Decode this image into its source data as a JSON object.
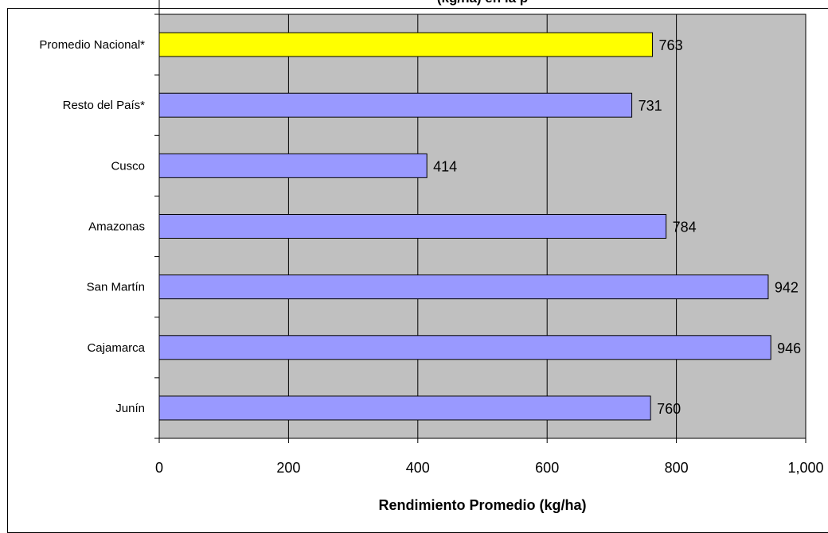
{
  "chart_data": {
    "type": "bar",
    "orientation": "horizontal",
    "title": "(kg/ha) en la p",
    "xlabel": "Rendimiento Promedio (kg/ha)",
    "ylabel": "",
    "categories": [
      "Promedio Nacional*",
      "Resto del País*",
      "Cusco",
      "Amazonas",
      "San Martín",
      "Cajamarca",
      "Junín"
    ],
    "values": [
      763,
      731,
      414,
      784,
      942,
      946,
      760
    ],
    "value_labels": [
      "763",
      "731",
      "414",
      "784",
      "942",
      "946",
      "760"
    ],
    "xlim": [
      0,
      1000
    ],
    "xticks": [
      0,
      200,
      400,
      600,
      800,
      1000
    ],
    "xtick_labels": [
      "0",
      "200",
      "400",
      "600",
      "800",
      "1,000"
    ],
    "grid": true,
    "legend": "none",
    "colors": {
      "plot_background": "#c0c0c0",
      "bar_default": "#9999ff",
      "bar_highlight": "#ffff00",
      "outline": "#000000"
    },
    "highlight_index": 0
  }
}
